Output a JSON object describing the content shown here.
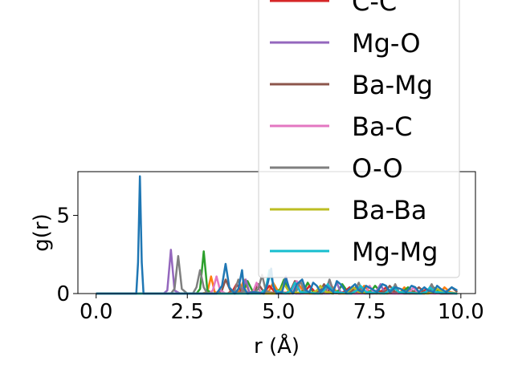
{
  "chart_data": {
    "type": "line",
    "title": "",
    "xlabel": "r (Å)",
    "ylabel": "g(r)",
    "xlim": [
      -0.5,
      10.4
    ],
    "ylim": [
      0,
      7.8
    ],
    "xticks": [
      0.0,
      2.5,
      5.0,
      7.5,
      10.0
    ],
    "xtick_labels": [
      "0.0",
      "2.5",
      "5.0",
      "7.5",
      "10.0"
    ],
    "yticks": [
      0,
      5
    ],
    "ytick_labels": [
      "0",
      "5"
    ],
    "grid": false,
    "legend_placement": "upper-right (extends above plot)",
    "legend_entries": [
      {
        "label": "C-C",
        "color": "#d62728"
      },
      {
        "label": "Mg-O",
        "color": "#9467bd"
      },
      {
        "label": "Ba-Mg",
        "color": "#8c564b"
      },
      {
        "label": "Ba-C",
        "color": "#e377c2"
      },
      {
        "label": "O-O",
        "color": "#7f7f7f"
      },
      {
        "label": "Ba-Ba",
        "color": "#bcbd22"
      },
      {
        "label": "Mg-Mg",
        "color": "#17becf"
      }
    ],
    "series": [
      {
        "color": "#ff7f0e",
        "x": [
          0,
          2.9,
          3.05,
          3.15,
          3.25,
          3.4,
          3.8,
          3.95,
          4.05,
          4.2,
          4.6,
          4.75,
          4.85,
          5.0,
          5.3,
          5.45,
          5.55,
          5.7,
          6.2,
          6.35,
          6.45,
          6.6,
          7.1,
          7.25,
          7.35,
          7.5,
          8.2,
          8.35,
          8.45,
          8.6,
          9.3,
          9.45,
          9.55,
          9.7,
          9.9
        ],
        "y": [
          0,
          0,
          0.1,
          1.1,
          0.1,
          0,
          0,
          0.2,
          0.9,
          0.1,
          0,
          0.2,
          0.7,
          0.1,
          0,
          0.2,
          0.6,
          0.1,
          0,
          0.2,
          0.5,
          0.1,
          0,
          0.2,
          0.5,
          0.1,
          0,
          0.1,
          0.4,
          0.1,
          0,
          0.1,
          0.4,
          0.1,
          0
        ]
      },
      {
        "color": "#2ca02c",
        "x": [
          0,
          2.75,
          2.85,
          2.95,
          3.05,
          3.2,
          3.9,
          4.05,
          4.15,
          4.3,
          4.9,
          5.05,
          5.15,
          5.3,
          5.5,
          5.7,
          5.8,
          5.95,
          6.5,
          6.65,
          6.75,
          6.9,
          7.4,
          7.55,
          7.65,
          7.8,
          8.3,
          8.45,
          8.55,
          8.7,
          9.0,
          9.15,
          9.25,
          9.4,
          9.9
        ],
        "y": [
          0,
          0,
          0.3,
          2.7,
          0.2,
          0,
          0,
          0.2,
          0.8,
          0.1,
          0,
          0.3,
          0.9,
          0.1,
          0,
          0.2,
          0.7,
          0.1,
          0,
          0.2,
          0.6,
          0.1,
          0,
          0.2,
          0.5,
          0.1,
          0,
          0.2,
          0.4,
          0.1,
          0,
          0.2,
          0.4,
          0.1,
          0
        ]
      },
      {
        "color": "#d62728",
        "x": [
          0,
          3.6,
          3.75,
          3.85,
          4.0,
          4.5,
          4.65,
          4.75,
          4.9,
          5.6,
          5.75,
          5.85,
          6.0,
          6.7,
          6.85,
          6.95,
          7.1,
          7.7,
          7.85,
          7.95,
          8.1,
          8.8,
          8.95,
          9.05,
          9.2,
          9.9
        ],
        "y": [
          0,
          0,
          0.2,
          0.6,
          0.1,
          0,
          0.2,
          0.5,
          0.1,
          0,
          0.2,
          0.5,
          0.1,
          0,
          0.2,
          0.4,
          0.1,
          0,
          0.2,
          0.4,
          0.1,
          0,
          0.1,
          0.3,
          0.1,
          0
        ]
      },
      {
        "color": "#9467bd",
        "x": [
          0,
          1.85,
          1.95,
          2.05,
          2.15,
          2.3,
          3.9,
          4.0,
          4.1,
          4.2,
          4.35,
          5.0,
          5.1,
          5.2,
          5.3,
          5.45,
          6.4,
          6.5,
          6.6,
          6.7,
          6.85,
          7.6,
          7.7,
          7.8,
          7.9,
          8.05,
          9.0,
          9.1,
          9.2,
          9.3,
          9.45,
          9.9
        ],
        "y": [
          0,
          0,
          0.2,
          2.8,
          0.2,
          0,
          0,
          0.1,
          0.9,
          0.1,
          0,
          0,
          0.2,
          1.1,
          0.2,
          0,
          0,
          0.2,
          0.7,
          0.1,
          0,
          0,
          0.2,
          0.6,
          0.1,
          0,
          0,
          0.1,
          0.5,
          0.1,
          0,
          0
        ]
      },
      {
        "color": "#8c564b",
        "x": [
          0,
          3.3,
          3.45,
          3.55,
          3.7,
          4.2,
          4.35,
          4.45,
          4.6,
          5.2,
          5.35,
          5.45,
          5.6,
          6.0,
          6.15,
          6.25,
          6.4,
          6.9,
          7.05,
          7.15,
          7.3,
          7.8,
          7.95,
          8.05,
          8.2,
          8.6,
          8.75,
          8.85,
          9.0,
          9.5,
          9.65,
          9.75,
          9.9
        ],
        "y": [
          0,
          0,
          0.2,
          0.9,
          0.1,
          0,
          0.2,
          0.6,
          0.1,
          0,
          0.3,
          0.8,
          0.1,
          0,
          0.2,
          0.6,
          0.1,
          0,
          0.2,
          0.5,
          0.1,
          0,
          0.2,
          0.5,
          0.1,
          0,
          0.2,
          0.4,
          0.1,
          0,
          0.2,
          0.4,
          0.1
        ]
      },
      {
        "color": "#e377c2",
        "x": [
          0,
          3.1,
          3.2,
          3.3,
          3.4,
          3.55,
          4.2,
          4.3,
          4.4,
          4.5,
          4.65,
          5.3,
          5.4,
          5.5,
          5.6,
          5.75,
          6.2,
          6.3,
          6.4,
          6.5,
          6.65,
          7.3,
          7.4,
          7.5,
          7.6,
          7.75,
          8.5,
          8.6,
          8.7,
          8.8,
          8.95,
          9.9
        ],
        "y": [
          0,
          0,
          0.2,
          1.1,
          0.2,
          0,
          0,
          0.1,
          0.7,
          0.1,
          0,
          0,
          0.2,
          0.8,
          0.1,
          0,
          0,
          0.1,
          0.6,
          0.1,
          0,
          0,
          0.1,
          0.5,
          0.1,
          0,
          0,
          0.1,
          0.4,
          0.1,
          0,
          0
        ]
      },
      {
        "color": "#7f7f7f",
        "x": [
          0,
          2.05,
          2.15,
          2.25,
          2.35,
          2.5,
          2.65,
          2.75,
          2.85,
          2.95,
          3.05,
          3.7,
          3.8,
          3.9,
          4.0,
          4.15,
          4.3,
          4.45,
          4.55,
          4.65,
          4.8,
          5.4,
          5.5,
          5.6,
          5.7,
          5.85,
          6.2,
          6.3,
          6.4,
          6.5,
          6.65,
          7.0,
          7.1,
          7.2,
          7.3,
          7.45,
          8.0,
          8.1,
          8.2,
          8.3,
          8.45,
          9.0,
          9.1,
          9.2,
          9.3,
          9.45,
          9.9
        ],
        "y": [
          0,
          0,
          0.3,
          2.4,
          0.3,
          0,
          0,
          0.4,
          1.5,
          0.4,
          0,
          0,
          0.2,
          0.9,
          0.2,
          0,
          0,
          0.3,
          1.2,
          0.2,
          0,
          0,
          0.2,
          0.8,
          0.2,
          0,
          0,
          0.2,
          0.9,
          0.2,
          0,
          0,
          0.2,
          0.7,
          0.1,
          0,
          0,
          0.1,
          0.6,
          0.1,
          0,
          0,
          0.2,
          0.6,
          0.1,
          0,
          0
        ]
      },
      {
        "color": "#bcbd22",
        "x": [
          0,
          4.9,
          5.05,
          5.15,
          5.3,
          5.9,
          6.05,
          6.15,
          6.3,
          6.8,
          6.95,
          7.05,
          7.2,
          7.9,
          8.05,
          8.15,
          8.3,
          9.1,
          9.25,
          9.35,
          9.5,
          9.9
        ],
        "y": [
          0,
          0,
          0.2,
          0.6,
          0.1,
          0,
          0.2,
          0.5,
          0.1,
          0,
          0.2,
          0.4,
          0.1,
          0,
          0.1,
          0.4,
          0.1,
          0,
          0.1,
          0.3,
          0.1,
          0
        ]
      },
      {
        "color": "#17becf",
        "x": [
          0,
          4.5,
          4.65,
          4.75,
          4.9,
          5.2,
          5.35,
          5.45,
          5.6,
          6.1,
          6.25,
          6.35,
          6.5,
          7.0,
          7.15,
          7.25,
          7.4,
          7.9,
          8.05,
          8.15,
          8.3,
          8.9,
          9.05,
          9.15,
          9.3,
          9.9
        ],
        "y": [
          0,
          0,
          0.3,
          1.5,
          0.2,
          0,
          0.2,
          0.7,
          0.1,
          0,
          0.2,
          0.6,
          0.1,
          0,
          0.2,
          0.5,
          0.1,
          0,
          0.2,
          0.4,
          0.1,
          0,
          0.1,
          0.4,
          0.1,
          0
        ]
      },
      {
        "color": "#1f77b4",
        "x": [
          0,
          1.1,
          1.15,
          1.2,
          1.25,
          1.3,
          3.3,
          3.45,
          3.55,
          3.65,
          3.8,
          3.9,
          4.0,
          4.05,
          4.15,
          4.3,
          4.6,
          4.7,
          4.8,
          4.85,
          4.95,
          5.1,
          5.2,
          5.3,
          5.4,
          5.5,
          5.65,
          5.75,
          5.85,
          5.95,
          6.05,
          6.15,
          6.3,
          6.4,
          6.5,
          6.6,
          6.7,
          6.85,
          7.0,
          7.1,
          7.2,
          7.3,
          7.4,
          7.55,
          7.7,
          7.85,
          7.95,
          8.05,
          8.2,
          8.35,
          8.5,
          8.65,
          8.75,
          8.85,
          9.0,
          9.1,
          9.25,
          9.35,
          9.45,
          9.6,
          9.75,
          9.9
        ],
        "y": [
          0,
          0,
          2.0,
          7.5,
          2.0,
          0,
          0,
          0.5,
          1.9,
          0.4,
          0,
          0.3,
          1.5,
          0.4,
          0,
          0.1,
          0,
          0.6,
          1.6,
          0.5,
          0,
          0.1,
          1.0,
          0.3,
          0,
          0.6,
          0.9,
          0.2,
          0.1,
          0.7,
          0.5,
          0.1,
          0.5,
          0.3,
          0.1,
          0.8,
          0.6,
          0.1,
          0.4,
          0.6,
          0.2,
          0.1,
          0.5,
          0.3,
          0.1,
          0.6,
          0.5,
          0.1,
          0.4,
          0.3,
          0.1,
          0.5,
          0.4,
          0.1,
          0.4,
          0.2,
          0.1,
          0.5,
          0.3,
          0.1,
          0.4,
          0.2
        ]
      }
    ]
  }
}
